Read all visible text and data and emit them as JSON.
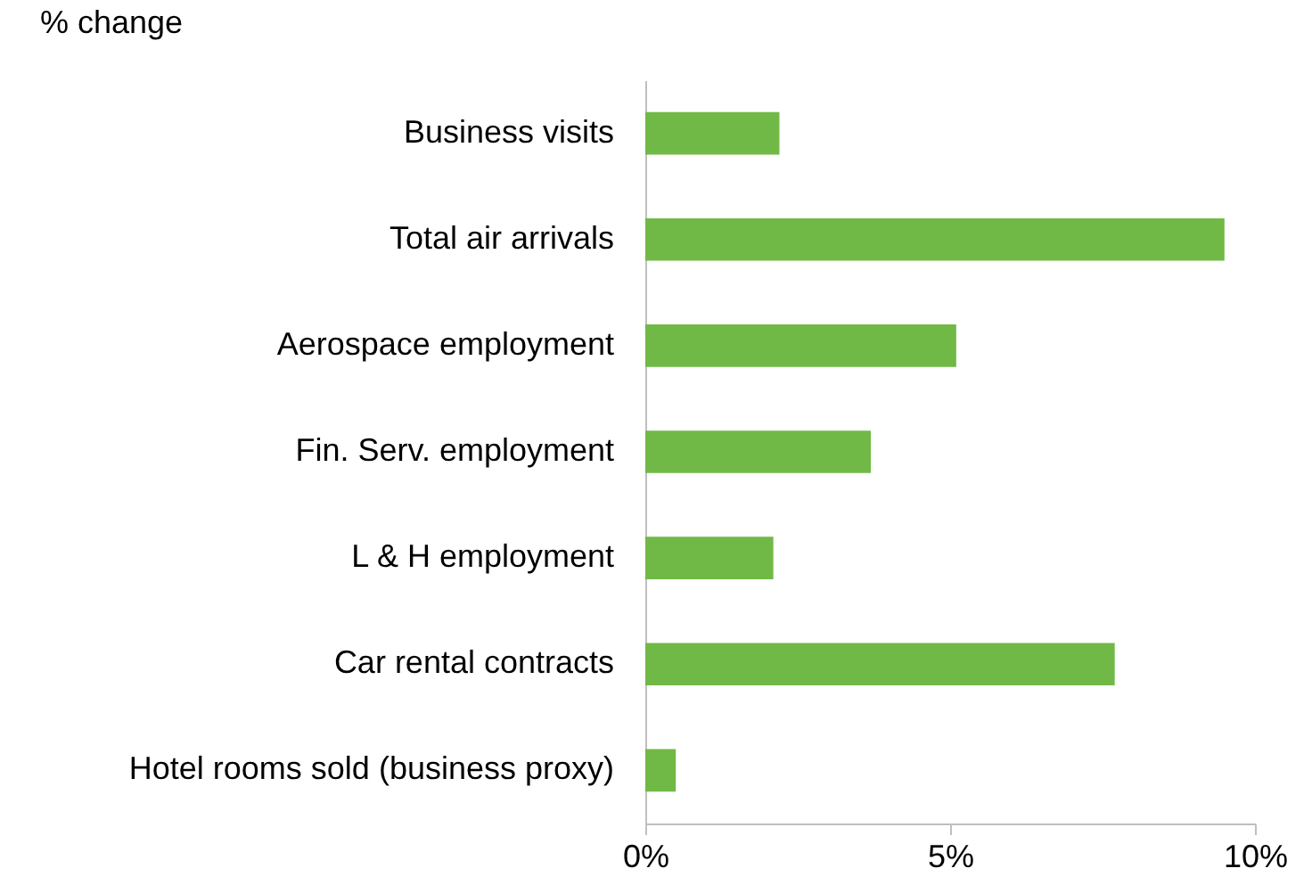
{
  "chart_data": {
    "type": "bar",
    "orientation": "horizontal",
    "xlabel": "% change",
    "categories": [
      "Business visits",
      "Total air arrivals",
      "Aerospace employment",
      "Fin. Serv. employment",
      "L & H employment",
      "Car rental contracts",
      "Hotel rooms sold (business proxy)"
    ],
    "values": [
      2.2,
      9.5,
      5.1,
      3.7,
      2.1,
      7.7,
      0.5
    ],
    "color": "#71b946",
    "xlim": [
      0,
      10
    ],
    "xticks": [
      {
        "value": 0,
        "label": "0%"
      },
      {
        "value": 5,
        "label": "5%"
      },
      {
        "value": 10,
        "label": "10%"
      }
    ],
    "grid": false
  }
}
